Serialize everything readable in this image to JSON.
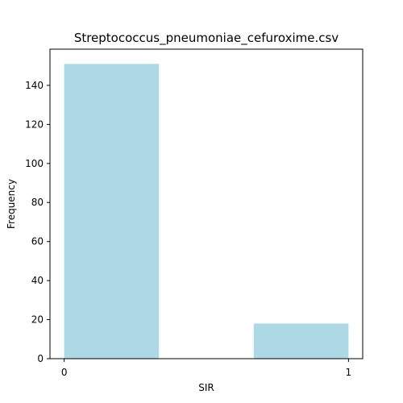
{
  "chart_data": {
    "type": "bar",
    "title": "Streptococcus_pneumoniae_cefuroxime.csv",
    "xlabel": "SIR",
    "ylabel": "Frequency",
    "bins": [
      {
        "start": 0.0,
        "end": 0.3333,
        "value": 151
      },
      {
        "start": 0.6667,
        "end": 1.0,
        "value": 18
      }
    ],
    "xlim": [
      -0.05,
      1.05
    ],
    "ylim": [
      0,
      158.55
    ],
    "x_ticks": [
      {
        "value": 0,
        "label": "0"
      },
      {
        "value": 1,
        "label": "1"
      }
    ],
    "y_ticks": [
      {
        "value": 0,
        "label": "0"
      },
      {
        "value": 20,
        "label": "20"
      },
      {
        "value": 40,
        "label": "40"
      },
      {
        "value": 60,
        "label": "60"
      },
      {
        "value": 80,
        "label": "80"
      },
      {
        "value": 100,
        "label": "100"
      },
      {
        "value": 120,
        "label": "120"
      },
      {
        "value": 140,
        "label": "140"
      }
    ],
    "bar_color": "#add8e6",
    "grid": false,
    "legend": "none"
  }
}
